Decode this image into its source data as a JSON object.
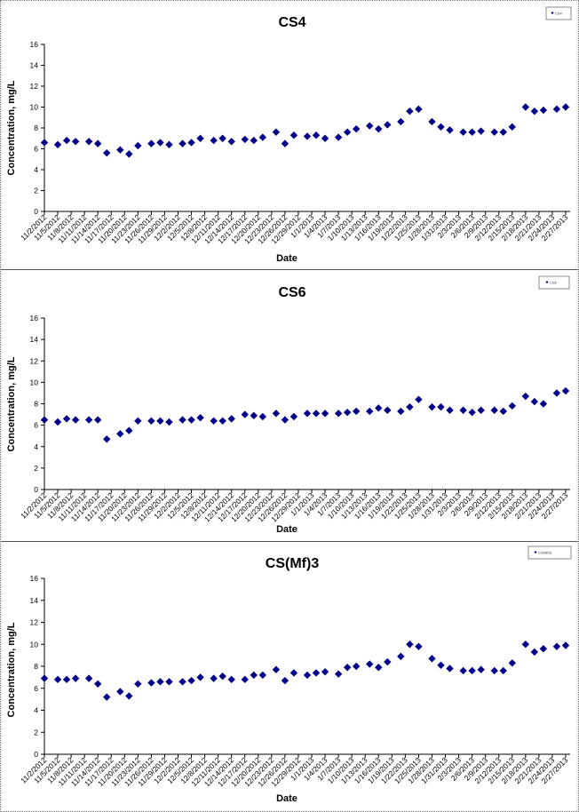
{
  "chart_data": [
    {
      "type": "scatter",
      "title": "CS4",
      "xlabel": "Date",
      "ylabel": "Concentration, mg/L",
      "ylim": [
        0,
        16
      ],
      "yticks": [
        0,
        2,
        4,
        6,
        8,
        10,
        12,
        14,
        16
      ],
      "xlim": [
        "11/2/2012",
        "2/28/2013"
      ],
      "xticks": [
        "11/2/2012",
        "11/5/2012",
        "11/8/2012",
        "11/11/2012",
        "11/14/2012",
        "11/17/2012",
        "11/20/2012",
        "11/23/2012",
        "11/26/2012",
        "11/29/2012",
        "12/2/2012",
        "12/5/2012",
        "12/8/2012",
        "12/11/2012",
        "12/14/2012",
        "12/17/2012",
        "12/20/2012",
        "12/23/2012",
        "12/26/2012",
        "12/29/2012",
        "1/1/2013",
        "1/4/2013",
        "1/7/2013",
        "1/10/2013",
        "1/13/2013",
        "1/16/2013",
        "1/19/2013",
        "1/22/2013",
        "1/25/2013",
        "1/28/2013",
        "1/31/2013",
        "2/3/2013",
        "2/6/2013",
        "2/9/2013",
        "2/12/2013",
        "2/15/2013",
        "2/18/2013",
        "2/21/2013",
        "2/24/2013",
        "2/27/2013"
      ],
      "grid": false,
      "legend_position": "top-right",
      "series": [
        {
          "name": "CS4",
          "color": "#00008b",
          "marker": "diamond",
          "points": [
            [
              "11/2/2012",
              6.6
            ],
            [
              "11/5/2012",
              6.4
            ],
            [
              "11/7/2012",
              6.8
            ],
            [
              "11/9/2012",
              6.7
            ],
            [
              "11/12/2012",
              6.7
            ],
            [
              "11/14/2012",
              6.5
            ],
            [
              "11/16/2012",
              5.6
            ],
            [
              "11/19/2012",
              5.9
            ],
            [
              "11/21/2012",
              5.5
            ],
            [
              "11/23/2012",
              6.3
            ],
            [
              "11/26/2012",
              6.5
            ],
            [
              "11/28/2012",
              6.6
            ],
            [
              "11/30/2012",
              6.4
            ],
            [
              "12/3/2012",
              6.5
            ],
            [
              "12/5/2012",
              6.6
            ],
            [
              "12/7/2012",
              7.0
            ],
            [
              "12/10/2012",
              6.8
            ],
            [
              "12/12/2012",
              7.0
            ],
            [
              "12/14/2012",
              6.7
            ],
            [
              "12/17/2012",
              6.9
            ],
            [
              "12/19/2012",
              6.8
            ],
            [
              "12/21/2012",
              7.1
            ],
            [
              "12/24/2012",
              7.6
            ],
            [
              "12/26/2012",
              6.5
            ],
            [
              "12/28/2012",
              7.3
            ],
            [
              "12/31/2012",
              7.2
            ],
            [
              "1/2/2013",
              7.3
            ],
            [
              "1/4/2013",
              7.0
            ],
            [
              "1/7/2013",
              7.1
            ],
            [
              "1/9/2013",
              7.6
            ],
            [
              "1/11/2013",
              7.9
            ],
            [
              "1/14/2013",
              8.2
            ],
            [
              "1/16/2013",
              7.9
            ],
            [
              "1/18/2013",
              8.3
            ],
            [
              "1/21/2013",
              8.6
            ],
            [
              "1/23/2013",
              9.6
            ],
            [
              "1/25/2013",
              9.8
            ],
            [
              "1/28/2013",
              8.6
            ],
            [
              "1/30/2013",
              8.1
            ],
            [
              "2/1/2013",
              7.8
            ],
            [
              "2/4/2013",
              7.6
            ],
            [
              "2/6/2013",
              7.6
            ],
            [
              "2/8/2013",
              7.7
            ],
            [
              "2/11/2013",
              7.6
            ],
            [
              "2/13/2013",
              7.6
            ],
            [
              "2/15/2013",
              8.1
            ],
            [
              "2/18/2013",
              10.0
            ],
            [
              "2/20/2013",
              9.6
            ],
            [
              "2/22/2013",
              9.7
            ],
            [
              "2/25/2013",
              9.8
            ],
            [
              "2/27/2013",
              10.0
            ]
          ]
        }
      ]
    },
    {
      "type": "scatter",
      "title": "CS6",
      "xlabel": "Date",
      "ylabel": "Concentration, mg/L",
      "ylim": [
        0,
        16
      ],
      "yticks": [
        0,
        2,
        4,
        6,
        8,
        10,
        12,
        14,
        16
      ],
      "xlim": [
        "11/2/2012",
        "2/28/2013"
      ],
      "xticks": [
        "11/2/2012",
        "11/5/2012",
        "11/8/2012",
        "11/11/2012",
        "11/14/2012",
        "11/17/2012",
        "11/20/2012",
        "11/23/2012",
        "11/26/2012",
        "11/29/2012",
        "12/2/2012",
        "12/5/2012",
        "12/8/2012",
        "12/11/2012",
        "12/14/2012",
        "12/17/2012",
        "12/20/2012",
        "12/23/2012",
        "12/26/2012",
        "12/29/2012",
        "1/1/2013",
        "1/4/2013",
        "1/7/2013",
        "1/10/2013",
        "1/13/2013",
        "1/16/2013",
        "1/19/2013",
        "1/22/2013",
        "1/25/2013",
        "1/28/2013",
        "1/31/2013",
        "2/3/2013",
        "2/6/2013",
        "2/9/2013",
        "2/12/2013",
        "2/15/2013",
        "2/18/2013",
        "2/21/2013",
        "2/24/2013",
        "2/27/2013"
      ],
      "grid": false,
      "legend_position": "top-right",
      "series": [
        {
          "name": "CS6",
          "color": "#00008b",
          "marker": "diamond",
          "points": [
            [
              "11/2/2012",
              6.5
            ],
            [
              "11/5/2012",
              6.3
            ],
            [
              "11/7/2012",
              6.6
            ],
            [
              "11/9/2012",
              6.5
            ],
            [
              "11/12/2012",
              6.5
            ],
            [
              "11/14/2012",
              6.5
            ],
            [
              "11/16/2012",
              4.7
            ],
            [
              "11/19/2012",
              5.2
            ],
            [
              "11/21/2012",
              5.5
            ],
            [
              "11/23/2012",
              6.4
            ],
            [
              "11/26/2012",
              6.4
            ],
            [
              "11/28/2012",
              6.4
            ],
            [
              "11/30/2012",
              6.3
            ],
            [
              "12/3/2012",
              6.5
            ],
            [
              "12/5/2012",
              6.5
            ],
            [
              "12/7/2012",
              6.7
            ],
            [
              "12/10/2012",
              6.4
            ],
            [
              "12/12/2012",
              6.4
            ],
            [
              "12/14/2012",
              6.6
            ],
            [
              "12/17/2012",
              7.0
            ],
            [
              "12/19/2012",
              6.9
            ],
            [
              "12/21/2012",
              6.8
            ],
            [
              "12/24/2012",
              7.1
            ],
            [
              "12/26/2012",
              6.5
            ],
            [
              "12/28/2012",
              6.8
            ],
            [
              "12/31/2012",
              7.1
            ],
            [
              "1/2/2013",
              7.1
            ],
            [
              "1/4/2013",
              7.1
            ],
            [
              "1/7/2013",
              7.1
            ],
            [
              "1/9/2013",
              7.2
            ],
            [
              "1/11/2013",
              7.3
            ],
            [
              "1/14/2013",
              7.3
            ],
            [
              "1/16/2013",
              7.6
            ],
            [
              "1/18/2013",
              7.4
            ],
            [
              "1/21/2013",
              7.3
            ],
            [
              "1/23/2013",
              7.7
            ],
            [
              "1/25/2013",
              8.4
            ],
            [
              "1/28/2013",
              7.7
            ],
            [
              "1/30/2013",
              7.7
            ],
            [
              "2/1/2013",
              7.4
            ],
            [
              "2/4/2013",
              7.4
            ],
            [
              "2/6/2013",
              7.2
            ],
            [
              "2/8/2013",
              7.4
            ],
            [
              "2/11/2013",
              7.4
            ],
            [
              "2/13/2013",
              7.3
            ],
            [
              "2/15/2013",
              7.8
            ],
            [
              "2/18/2013",
              8.7
            ],
            [
              "2/20/2013",
              8.2
            ],
            [
              "2/22/2013",
              8.0
            ],
            [
              "2/25/2013",
              9.0
            ],
            [
              "2/27/2013",
              9.2
            ]
          ]
        }
      ]
    },
    {
      "type": "scatter",
      "title": "CS(Mf)3",
      "xlabel": "Date",
      "ylabel": "Concentration, mg/L",
      "ylim": [
        0,
        16
      ],
      "yticks": [
        0,
        2,
        4,
        6,
        8,
        10,
        12,
        14,
        16
      ],
      "xlim": [
        "11/2/2012",
        "2/28/2013"
      ],
      "xticks": [
        "11/2/2012",
        "11/5/2012",
        "11/8/2012",
        "11/11/2012",
        "11/14/2012",
        "11/17/2012",
        "11/20/2012",
        "11/23/2012",
        "11/26/2012",
        "11/29/2012",
        "12/2/2012",
        "12/5/2012",
        "12/8/2012",
        "12/11/2012",
        "12/14/2012",
        "12/17/2012",
        "12/20/2012",
        "12/23/2012",
        "12/26/2012",
        "12/29/2012",
        "1/1/2013",
        "1/4/2013",
        "1/7/2013",
        "1/10/2013",
        "1/13/2013",
        "1/16/2013",
        "1/19/2013",
        "1/22/2013",
        "1/25/2013",
        "1/28/2013",
        "1/31/2013",
        "2/3/2013",
        "2/6/2013",
        "2/9/2013",
        "2/12/2013",
        "2/15/2013",
        "2/18/2013",
        "2/21/2013",
        "2/24/2013",
        "2/27/2013"
      ],
      "grid": false,
      "legend_position": "top-right",
      "series": [
        {
          "name": "CS(Mf)3",
          "color": "#00008b",
          "marker": "diamond",
          "points": [
            [
              "11/2/2012",
              6.9
            ],
            [
              "11/5/2012",
              6.8
            ],
            [
              "11/7/2012",
              6.8
            ],
            [
              "11/9/2012",
              6.9
            ],
            [
              "11/12/2012",
              6.9
            ],
            [
              "11/14/2012",
              6.4
            ],
            [
              "11/16/2012",
              5.2
            ],
            [
              "11/19/2012",
              5.7
            ],
            [
              "11/21/2012",
              5.3
            ],
            [
              "11/23/2012",
              6.4
            ],
            [
              "11/26/2012",
              6.5
            ],
            [
              "11/28/2012",
              6.6
            ],
            [
              "11/30/2012",
              6.6
            ],
            [
              "12/3/2012",
              6.6
            ],
            [
              "12/5/2012",
              6.7
            ],
            [
              "12/7/2012",
              7.0
            ],
            [
              "12/10/2012",
              6.9
            ],
            [
              "12/12/2012",
              7.1
            ],
            [
              "12/14/2012",
              6.8
            ],
            [
              "12/17/2012",
              6.8
            ],
            [
              "12/19/2012",
              7.2
            ],
            [
              "12/21/2012",
              7.2
            ],
            [
              "12/24/2012",
              7.7
            ],
            [
              "12/26/2012",
              6.7
            ],
            [
              "12/28/2012",
              7.4
            ],
            [
              "12/31/2012",
              7.2
            ],
            [
              "1/2/2013",
              7.4
            ],
            [
              "1/4/2013",
              7.5
            ],
            [
              "1/7/2013",
              7.3
            ],
            [
              "1/9/2013",
              7.9
            ],
            [
              "1/11/2013",
              8.0
            ],
            [
              "1/14/2013",
              8.2
            ],
            [
              "1/16/2013",
              7.9
            ],
            [
              "1/18/2013",
              8.4
            ],
            [
              "1/21/2013",
              8.9
            ],
            [
              "1/23/2013",
              10.0
            ],
            [
              "1/25/2013",
              9.8
            ],
            [
              "1/28/2013",
              8.7
            ],
            [
              "1/30/2013",
              8.1
            ],
            [
              "2/1/2013",
              7.8
            ],
            [
              "2/4/2013",
              7.6
            ],
            [
              "2/6/2013",
              7.6
            ],
            [
              "2/8/2013",
              7.7
            ],
            [
              "2/11/2013",
              7.6
            ],
            [
              "2/13/2013",
              7.6
            ],
            [
              "2/15/2013",
              8.3
            ],
            [
              "2/18/2013",
              10.0
            ],
            [
              "2/20/2013",
              9.3
            ],
            [
              "2/22/2013",
              9.6
            ],
            [
              "2/25/2013",
              9.8
            ],
            [
              "2/27/2013",
              9.9
            ]
          ]
        }
      ]
    }
  ]
}
